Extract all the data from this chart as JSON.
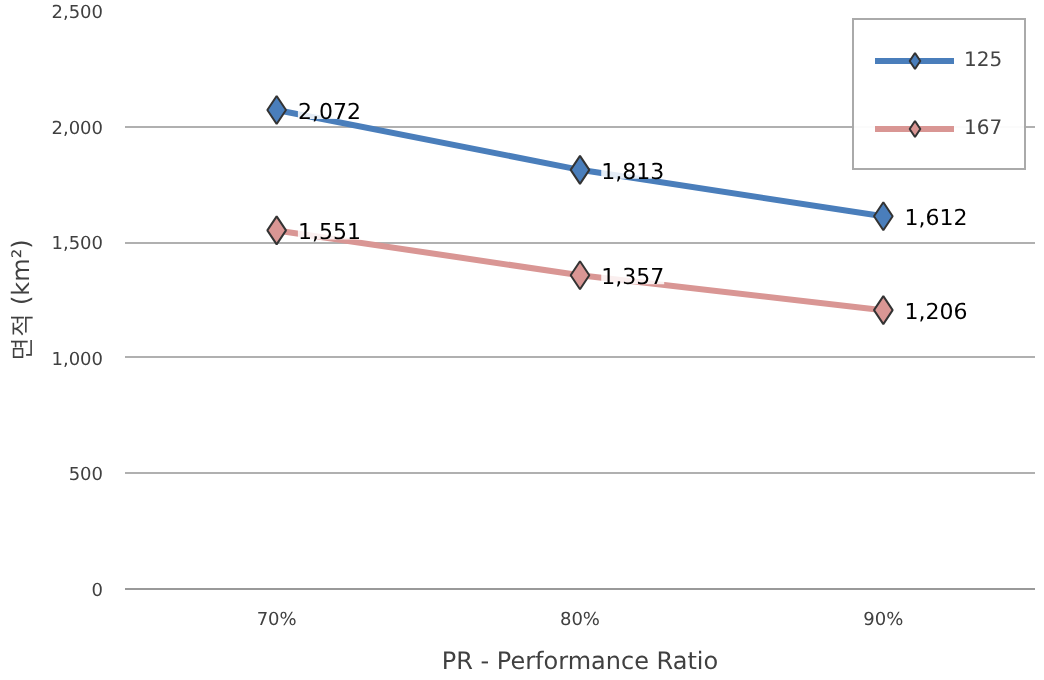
{
  "chart_data": {
    "type": "line",
    "xlabel": "PR - Performance Ratio",
    "ylabel": "면적 (km²)",
    "categories": [
      "70%",
      "80%",
      "90%"
    ],
    "series": [
      {
        "name": "125",
        "color": "#4a7ebb",
        "values": [
          2072,
          1813,
          1612
        ],
        "value_labels": [
          "2,072",
          "1,813",
          "1,612"
        ]
      },
      {
        "name": "167",
        "color": "#d99694",
        "values": [
          1551,
          1357,
          1206
        ],
        "value_labels": [
          "1,551",
          "1,357",
          "1,206"
        ]
      }
    ],
    "ylim": [
      0,
      2500
    ],
    "yticks": [
      0,
      {
        "value": 500,
        "label": "500"
      },
      {
        "value": 1000,
        "label": "1,000"
      },
      {
        "value": 1500,
        "label": "1,500"
      },
      {
        "value": 2000,
        "label": "2,000"
      },
      {
        "value": 2500,
        "label": "2,500"
      }
    ],
    "grid": "y",
    "legend": "top right",
    "marker": "diamond",
    "line_style": "solid"
  }
}
